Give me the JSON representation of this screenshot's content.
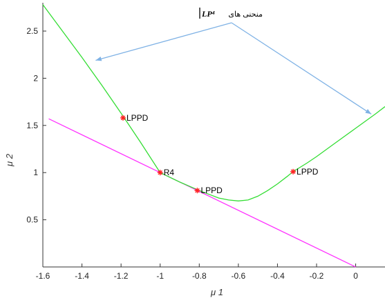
{
  "chart_data": {
    "type": "line",
    "title": "",
    "xlabel": "μ 1",
    "ylabel": "μ 2",
    "xlim": [
      -1.6,
      0.15
    ],
    "ylim": [
      0,
      2.8
    ],
    "grid": false,
    "x_ticks": [
      "-1.6",
      "-1.4",
      "-1.2",
      "-1",
      "-0.8",
      "-0.6",
      "-0.4",
      "-0.2",
      "0"
    ],
    "x_tick_values": [
      -1.6,
      -1.4,
      -1.2,
      -1.0,
      -0.8,
      -0.6,
      -0.4,
      -0.2,
      0
    ],
    "y_ticks": [
      "0.5",
      "1",
      "1.5",
      "2",
      "2.5"
    ],
    "y_tick_values": [
      0.5,
      1.0,
      1.5,
      2.0,
      2.5
    ],
    "series": [
      {
        "color": "#ff33ff",
        "x": [
          -1.57,
          0.0
        ],
        "y": [
          1.57,
          0.0
        ]
      },
      {
        "color": "#33dd33",
        "x": [
          -1.6,
          -1.5,
          -1.4,
          -1.3,
          -1.2,
          -1.1,
          -1.0,
          -0.9,
          -0.8,
          -0.75,
          -0.7,
          -0.65,
          -0.6,
          -0.55,
          -0.5,
          -0.45,
          -0.4,
          -0.35,
          -0.32,
          -0.25,
          -0.2,
          -0.1,
          0.0,
          0.1,
          0.15
        ],
        "y": [
          2.78,
          2.5,
          2.22,
          1.93,
          1.63,
          1.32,
          1.0,
          0.9,
          0.81,
          0.77,
          0.73,
          0.71,
          0.7,
          0.71,
          0.75,
          0.81,
          0.88,
          0.96,
          1.01,
          1.1,
          1.17,
          1.32,
          1.47,
          1.62,
          1.7
        ]
      }
    ],
    "points": [
      {
        "x": -1.19,
        "y": 1.58,
        "label": "LPPD"
      },
      {
        "x": -1.0,
        "y": 1.0,
        "label": "R4"
      },
      {
        "x": -0.81,
        "y": 0.81,
        "label": "LPPD"
      },
      {
        "x": -0.32,
        "y": 1.01,
        "label": "LPPD"
      }
    ],
    "annotation": {
      "text": "منحنی های",
      "math": "LP⁴",
      "arrow_targets": [
        {
          "x": -1.33,
          "y": 2.19
        },
        {
          "x": 0.08,
          "y": 1.62
        }
      ]
    },
    "colors": {
      "lppd_curve": "#33dd33",
      "line": "#ff33ff",
      "marker": "#ff2222",
      "arrow": "#7fb2e5",
      "axis": "#333333"
    }
  }
}
